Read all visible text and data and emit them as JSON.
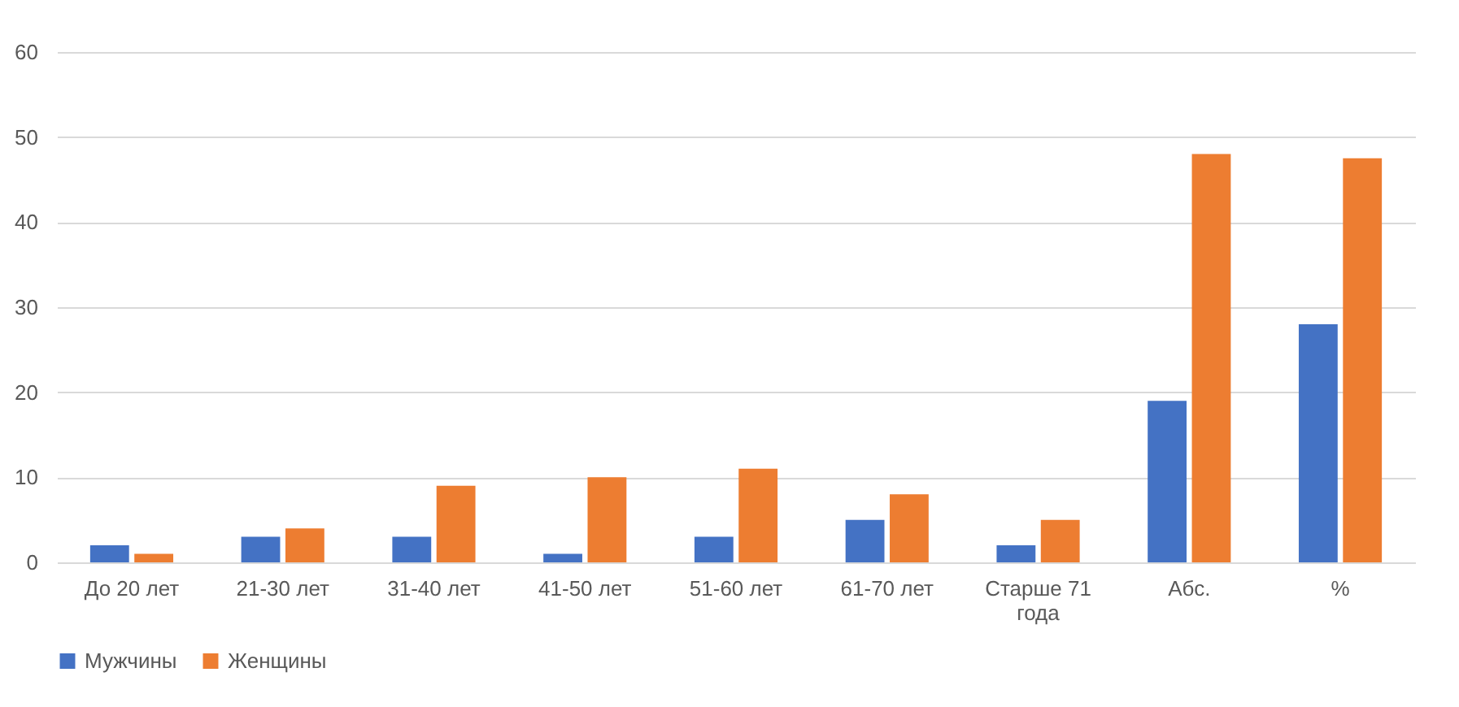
{
  "chart_data": {
    "type": "bar",
    "categories": [
      "До 20 лет",
      "21-30 лет",
      "31-40 лет",
      "41-50 лет",
      "51-60 лет",
      "61-70 лет",
      "Старше 71 года",
      "Абс.",
      "%"
    ],
    "series": [
      {
        "name": "Мужчины",
        "color": "#4472c4",
        "values": [
          2,
          3,
          3,
          1,
          3,
          5,
          2,
          19,
          28
        ]
      },
      {
        "name": "Женщины",
        "color": "#ed7d31",
        "values": [
          1,
          4,
          9,
          10,
          11,
          8,
          5,
          48,
          47.5
        ]
      }
    ],
    "ylim": [
      0,
      60
    ],
    "yticks": [
      0,
      10,
      20,
      30,
      40,
      50,
      60
    ],
    "grid": "y",
    "legend": "bottom"
  }
}
